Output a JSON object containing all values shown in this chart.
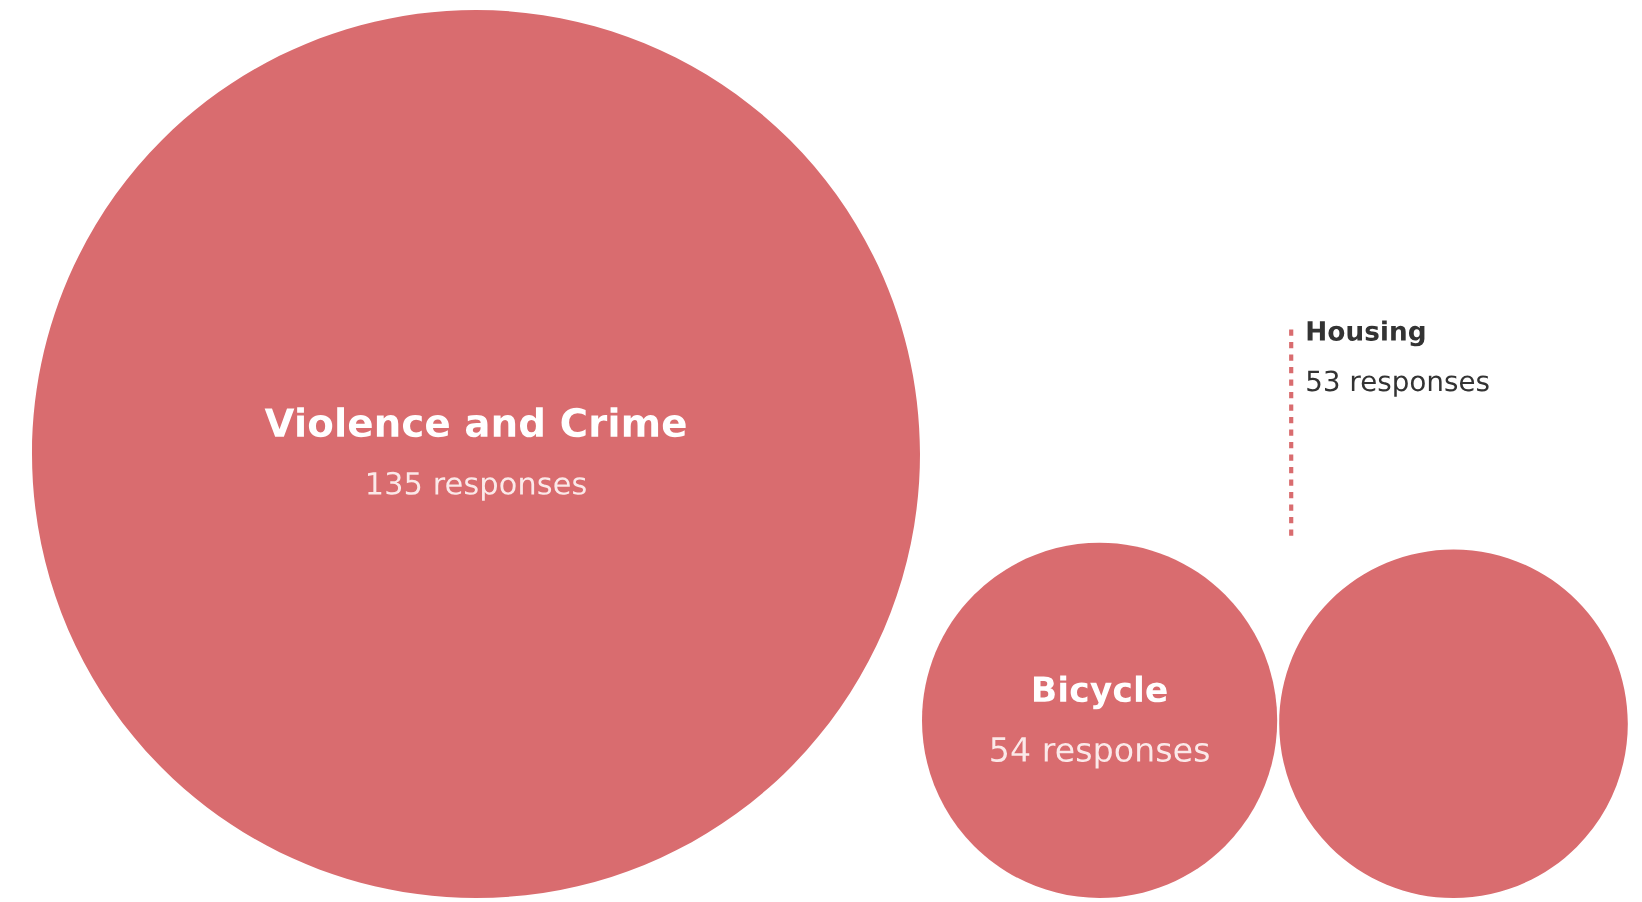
{
  "chart_data": {
    "type": "other",
    "categories": [
      "Violence and Crime",
      "Bicycle",
      "Housing"
    ],
    "values": [
      135,
      54,
      53
    ],
    "value_labels": [
      "135 responses",
      "54 responses",
      "53 responses"
    ],
    "color": "#d96c6f"
  }
}
